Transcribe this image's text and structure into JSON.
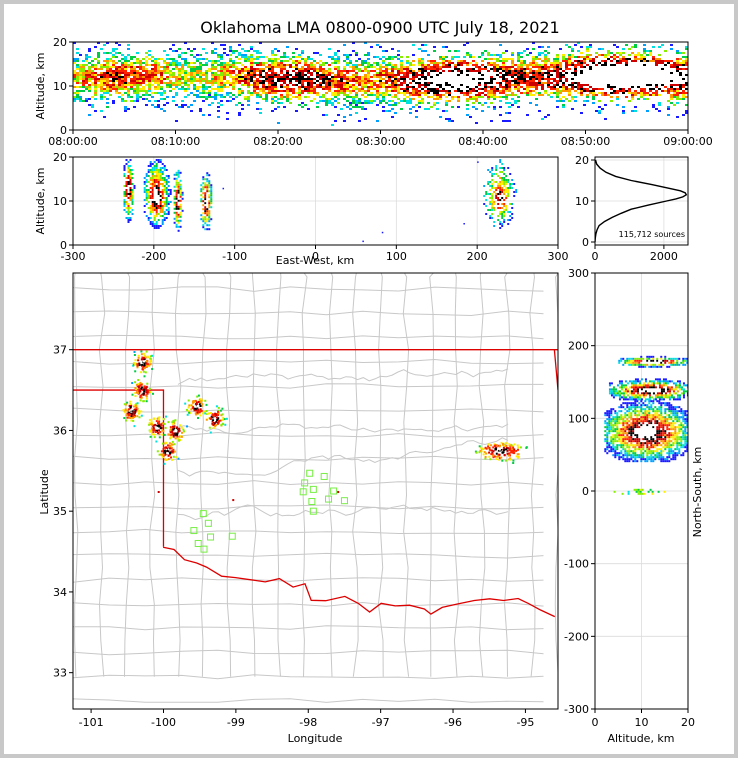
{
  "title": "Oklahoma LMA 0800-0900 UTC July 18, 2021",
  "colors": {
    "state_border": "#dd0000",
    "county_lines": "#c8c8c8",
    "stations": "#77ee44",
    "colormap": [
      "#1a1aff",
      "#00a0ff",
      "#00e0e0",
      "#00cc44",
      "#88ee00",
      "#ffee00",
      "#ff9900",
      "#ff2200",
      "#cc0000",
      "#000000",
      "#ffffff"
    ]
  },
  "chart_data": [
    {
      "name": "time-height",
      "type": "heatmap",
      "xlabel": "",
      "ylabel": "Altitude, km",
      "xlim": [
        "08:00:00",
        "09:00:00"
      ],
      "ylim": [
        0,
        20
      ],
      "xticks": [
        "08:00:00",
        "08:10:00",
        "08:20:00",
        "08:30:00",
        "08:40:00",
        "08:50:00",
        "09:00:00"
      ],
      "yticks": [
        0,
        10,
        20
      ]
    },
    {
      "name": "east-west-altitude",
      "type": "heatmap",
      "xlabel": "East-West, km",
      "ylabel": "Altitude, km",
      "xlim": [
        -300,
        300
      ],
      "ylim": [
        0,
        20
      ],
      "xticks": [
        -300,
        -200,
        -100,
        0,
        100,
        200,
        300
      ],
      "yticks": [
        0,
        10,
        20
      ],
      "clusters": [
        {
          "x": [
            -240,
            -225
          ],
          "z": [
            5,
            20
          ],
          "peak_z": 13
        },
        {
          "x": [
            -215,
            -180
          ],
          "z": [
            4,
            20
          ],
          "peak_z": 11
        },
        {
          "x": [
            -178,
            -165
          ],
          "z": [
            3,
            18
          ],
          "peak_z": 10
        },
        {
          "x": [
            -145,
            -128
          ],
          "z": [
            3,
            17
          ],
          "peak_z": 10
        },
        {
          "x": [
            205,
            248
          ],
          "z": [
            4,
            20
          ],
          "peak_z": 11
        }
      ]
    },
    {
      "name": "altitude-histogram",
      "type": "line",
      "annotation": "115,712 sources",
      "xlim": [
        0,
        2700
      ],
      "ylim": [
        0,
        20
      ],
      "xticks": [
        0,
        2000
      ],
      "yticks": [
        0,
        10,
        20
      ],
      "series": [
        {
          "name": "sources per altitude bin",
          "altitude_km": [
            0,
            1,
            2,
            3,
            4,
            5,
            6,
            7,
            8,
            9,
            10,
            10.5,
            11,
            11.5,
            12,
            12.5,
            13,
            14,
            15,
            16,
            17,
            18,
            19,
            20
          ],
          "count": [
            0,
            10,
            25,
            60,
            120,
            280,
            500,
            760,
            1050,
            1550,
            2080,
            2350,
            2550,
            2650,
            2620,
            2480,
            2200,
            1650,
            1050,
            600,
            320,
            150,
            50,
            15
          ]
        }
      ]
    },
    {
      "name": "plan-view-map",
      "type": "scatter",
      "xlabel": "Longitude",
      "ylabel": "Latitude",
      "xlim": [
        -101.25,
        -94.55
      ],
      "ylim": [
        32.55,
        37.95
      ],
      "xticks": [
        -101,
        -100,
        -99,
        -98,
        -97,
        -96,
        -95
      ],
      "yticks": [
        33,
        34,
        35,
        36,
        37
      ],
      "source_clusters": [
        {
          "lon": -100.45,
          "lat": 36.25
        },
        {
          "lon": -100.1,
          "lat": 36.05
        },
        {
          "lon": -99.85,
          "lat": 36.0
        },
        {
          "lon": -100.3,
          "lat": 36.5
        },
        {
          "lon": -99.95,
          "lat": 35.75
        },
        {
          "lon": -99.55,
          "lat": 36.3
        },
        {
          "lon": -99.3,
          "lat": 36.15
        },
        {
          "lon": -100.3,
          "lat": 36.85
        },
        {
          "lon": -95.35,
          "lat": 35.75
        }
      ],
      "stations": [
        {
          "lon": -97.98,
          "lat": 35.47
        },
        {
          "lon": -97.78,
          "lat": 35.43
        },
        {
          "lon": -98.05,
          "lat": 35.35
        },
        {
          "lon": -97.93,
          "lat": 35.27
        },
        {
          "lon": -98.07,
          "lat": 35.24
        },
        {
          "lon": -97.65,
          "lat": 35.25
        },
        {
          "lon": -97.72,
          "lat": 35.15
        },
        {
          "lon": -97.5,
          "lat": 35.13
        },
        {
          "lon": -97.95,
          "lat": 35.12
        },
        {
          "lon": -97.93,
          "lat": 35.0
        },
        {
          "lon": -99.45,
          "lat": 34.97
        },
        {
          "lon": -99.38,
          "lat": 34.85
        },
        {
          "lon": -99.58,
          "lat": 34.76
        },
        {
          "lon": -99.35,
          "lat": 34.68
        },
        {
          "lon": -99.05,
          "lat": 34.69
        },
        {
          "lon": -99.52,
          "lat": 34.6
        },
        {
          "lon": -99.44,
          "lat": 34.53
        }
      ]
    },
    {
      "name": "altitude-north-south",
      "type": "heatmap",
      "xlabel": "Altitude, km",
      "ylabel": "North-South, km",
      "xlim": [
        0,
        20
      ],
      "ylim": [
        -300,
        300
      ],
      "xticks": [
        0,
        10,
        20
      ],
      "yticks": [
        -300,
        -200,
        -100,
        0,
        100,
        200,
        300
      ],
      "clusters": [
        {
          "y": [
            172,
            186
          ],
          "z": [
            5,
            20
          ],
          "peak_z": 12
        },
        {
          "y": [
            125,
            155
          ],
          "z": [
            3,
            20
          ],
          "peak_z": 12
        },
        {
          "y": [
            40,
            125
          ],
          "z": [
            2,
            20
          ],
          "peak_z": 11
        },
        {
          "y": [
            -3,
            3
          ],
          "z": [
            4,
            15
          ],
          "peak_z": 10
        }
      ]
    }
  ]
}
